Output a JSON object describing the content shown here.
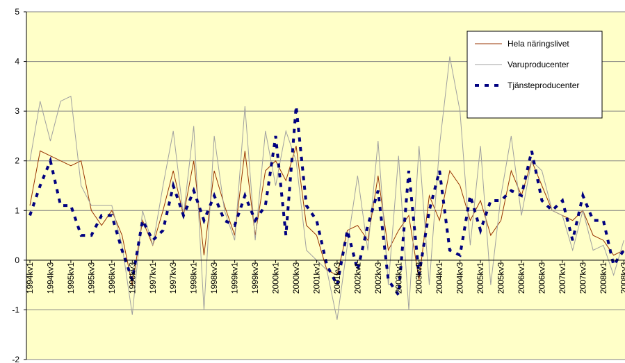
{
  "chart_data": {
    "type": "line",
    "categories": [
      "1994kv1",
      null,
      "1994kv3",
      null,
      "1995kv1",
      null,
      "1995kv3",
      null,
      "1996kv1",
      null,
      "1996kv3",
      null,
      "1997kv1",
      null,
      "1997kv3",
      null,
      "1998kv1",
      null,
      "1998kv3",
      null,
      "1999kv1",
      null,
      "1999kv3",
      null,
      "2000kv1",
      null,
      "2000kv3",
      null,
      "2001kv1",
      null,
      "2001kv3",
      null,
      "2002kv1",
      null,
      "2002kv3",
      null,
      "2003kv1",
      null,
      "2003kv3",
      null,
      "2004kv1",
      null,
      "2004kv3",
      null,
      "2005kv1",
      null,
      "2005kv3",
      null,
      "2006kv1",
      null,
      "2006kv3",
      null,
      "2007kv1",
      null,
      "2007kv3",
      null,
      "2008kv1",
      null,
      "2008kv3"
    ],
    "series": [
      {
        "name": "Hela näringslivet",
        "color": "#993300",
        "values": [
          1.1,
          2.2,
          2.1,
          2.0,
          1.9,
          2.0,
          1.0,
          0.7,
          1.0,
          0.5,
          -0.5,
          0.8,
          0.3,
          1.0,
          1.8,
          0.9,
          2.0,
          0.1,
          1.8,
          1.1,
          0.5,
          2.2,
          0.5,
          1.8,
          2.0,
          1.6,
          2.3,
          0.7,
          0.5,
          -0.2,
          -0.3,
          0.6,
          0.7,
          0.4,
          1.7,
          0.2,
          0.6,
          0.9,
          -0.4,
          1.3,
          0.8,
          1.8,
          1.5,
          0.8,
          1.2,
          0.5,
          0.8,
          1.8,
          1.3,
          2.0,
          1.5,
          1.0,
          0.9,
          0.8,
          1.0,
          0.5,
          0.4,
          0.1,
          0.2
        ]
      },
      {
        "name": "Varuproducenter",
        "color": "#a0a0a0",
        "values": [
          2.0,
          3.2,
          2.4,
          3.2,
          3.3,
          1.5,
          1.1,
          1.1,
          1.1,
          0.3,
          -1.1,
          1.0,
          0.3,
          1.5,
          2.6,
          0.9,
          2.7,
          -1.0,
          2.5,
          1.0,
          0.4,
          3.1,
          0.4,
          2.6,
          1.5,
          2.6,
          2.0,
          0.2,
          0.0,
          -0.2,
          -1.2,
          0.3,
          1.7,
          0.2,
          2.4,
          -0.5,
          2.1,
          -1.0,
          2.3,
          -0.5,
          2.3,
          4.1,
          3.0,
          0.3,
          2.3,
          -0.5,
          1.3,
          2.5,
          0.9,
          2.0,
          1.8,
          1.0,
          0.9,
          0.2,
          1.0,
          0.2,
          0.3,
          -0.3,
          0.4
        ]
      },
      {
        "name": "Tjänsteproducenter",
        "color": "#000080",
        "dashed": true,
        "values": [
          0.9,
          1.5,
          2.0,
          1.1,
          1.1,
          0.5,
          0.5,
          0.9,
          0.9,
          0.2,
          -0.4,
          0.8,
          0.4,
          0.6,
          1.5,
          0.9,
          1.4,
          0.8,
          1.3,
          0.8,
          0.7,
          1.3,
          0.8,
          1.1,
          2.5,
          0.5,
          3.1,
          1.1,
          0.8,
          -0.1,
          -0.5,
          0.6,
          -0.2,
          0.7,
          1.4,
          -0.4,
          -0.7,
          1.8,
          -0.3,
          1.0,
          1.8,
          0.2,
          0.1,
          1.3,
          0.6,
          1.2,
          1.2,
          1.4,
          1.3,
          2.2,
          1.2,
          1.0,
          1.2,
          0.4,
          1.3,
          0.8,
          0.8,
          -0.1,
          0.2
        ]
      }
    ],
    "ylim": [
      -2,
      5
    ],
    "yticks": [
      -2,
      -1,
      0,
      1,
      2,
      3,
      4,
      5
    ],
    "grid": true,
    "legend": "top-right"
  }
}
